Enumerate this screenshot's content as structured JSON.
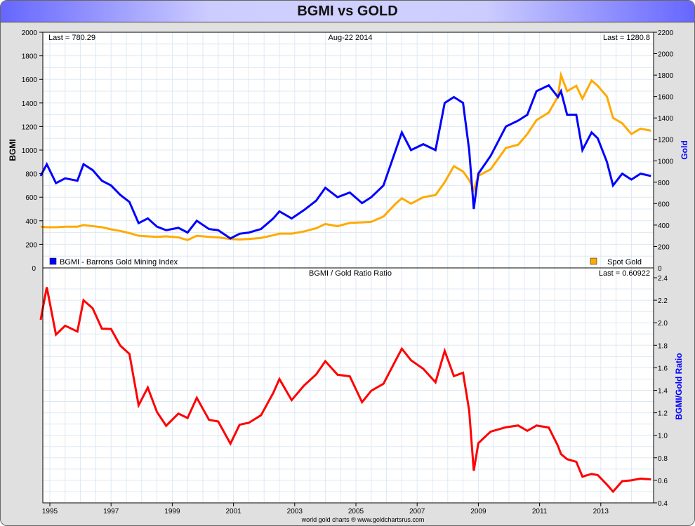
{
  "chart_data": [
    {
      "type": "line",
      "title": "BGMI vs GOLD",
      "date_label": "Aug-22  2014",
      "ylabel": "BGMI",
      "y2label": "Gold",
      "ylim": [
        0,
        2000
      ],
      "y2lim": [
        0,
        2200
      ],
      "yticks": [
        0,
        200,
        400,
        600,
        800,
        1000,
        1200,
        1400,
        1600,
        1800,
        2000
      ],
      "y2ticks": [
        0,
        200,
        400,
        600,
        800,
        1000,
        1200,
        1400,
        1600,
        1800,
        2000,
        2200
      ],
      "last_left": "Last = 780.29",
      "last_right": "Last = 1280.8",
      "legend": [
        {
          "label": "BGMI - Barrons Gold Mining Index",
          "color": "#0000ff"
        },
        {
          "label": "Spot Gold",
          "color": "#ffaa00"
        }
      ],
      "x": [
        1994.7,
        1994.9,
        1995.2,
        1995.5,
        1995.9,
        1996.1,
        1996.4,
        1996.7,
        1997.0,
        1997.3,
        1997.6,
        1997.9,
        1998.2,
        1998.5,
        1998.8,
        1999.2,
        1999.5,
        1999.8,
        2000.2,
        2000.5,
        2000.9,
        2001.2,
        2001.5,
        2001.9,
        2002.3,
        2002.5,
        2002.9,
        2003.3,
        2003.7,
        2004.0,
        2004.4,
        2004.8,
        2005.2,
        2005.5,
        2005.9,
        2006.3,
        2006.5,
        2006.8,
        2007.2,
        2007.6,
        2007.9,
        2008.2,
        2008.5,
        2008.7,
        2008.85,
        2009.0,
        2009.4,
        2009.9,
        2010.3,
        2010.6,
        2010.9,
        2011.3,
        2011.6,
        2011.7,
        2011.9,
        2012.2,
        2012.4,
        2012.7,
        2012.9,
        2013.2,
        2013.4,
        2013.7,
        2014.0,
        2014.3,
        2014.64
      ],
      "series": [
        {
          "name": "BGMI",
          "color": "#0000ff",
          "values": [
            780,
            880,
            720,
            760,
            740,
            880,
            830,
            740,
            700,
            620,
            560,
            380,
            420,
            350,
            320,
            340,
            300,
            400,
            330,
            320,
            250,
            290,
            300,
            330,
            420,
            480,
            420,
            490,
            570,
            680,
            600,
            640,
            550,
            600,
            700,
            1000,
            1150,
            1000,
            1050,
            1000,
            1400,
            1450,
            1400,
            1000,
            500,
            800,
            950,
            1200,
            1250,
            1300,
            1500,
            1550,
            1450,
            1500,
            1300,
            1300,
            1000,
            1150,
            1100,
            900,
            700,
            800,
            750,
            800,
            780
          ]
        },
        {
          "name": "Gold",
          "color": "#ffaa00",
          "values": [
            385,
            380,
            380,
            385,
            385,
            400,
            390,
            380,
            360,
            345,
            325,
            300,
            295,
            290,
            295,
            285,
            260,
            300,
            290,
            285,
            270,
            265,
            270,
            280,
            305,
            320,
            320,
            340,
            370,
            410,
            390,
            420,
            425,
            430,
            480,
            600,
            650,
            600,
            660,
            680,
            800,
            950,
            900,
            820,
            730,
            860,
            920,
            1120,
            1150,
            1250,
            1380,
            1450,
            1600,
            1800,
            1650,
            1700,
            1580,
            1750,
            1700,
            1600,
            1400,
            1350,
            1250,
            1300,
            1280.8
          ]
        }
      ]
    },
    {
      "type": "line",
      "title": "BGMI / Gold Ratio Ratio",
      "y2label": "BGMI/Gold Ratio",
      "last": "Last = 0.60922",
      "ylim": [
        0.4,
        2.4
      ],
      "yticks": [
        "0.4",
        "0.6",
        "0.8",
        "1.0",
        "1.2",
        "1.4",
        "1.6",
        "1.8",
        "2.0",
        "2.2",
        "2.4"
      ],
      "color": "#ff0000"
    }
  ],
  "xticks": [
    "1995",
    "1997",
    "1999",
    "2001",
    "2003",
    "2005",
    "2007",
    "2009",
    "2011",
    "2013"
  ],
  "footer": "world gold charts ® www.goldchartsrus.com",
  "zero_left": "0",
  "zero_right": "0"
}
